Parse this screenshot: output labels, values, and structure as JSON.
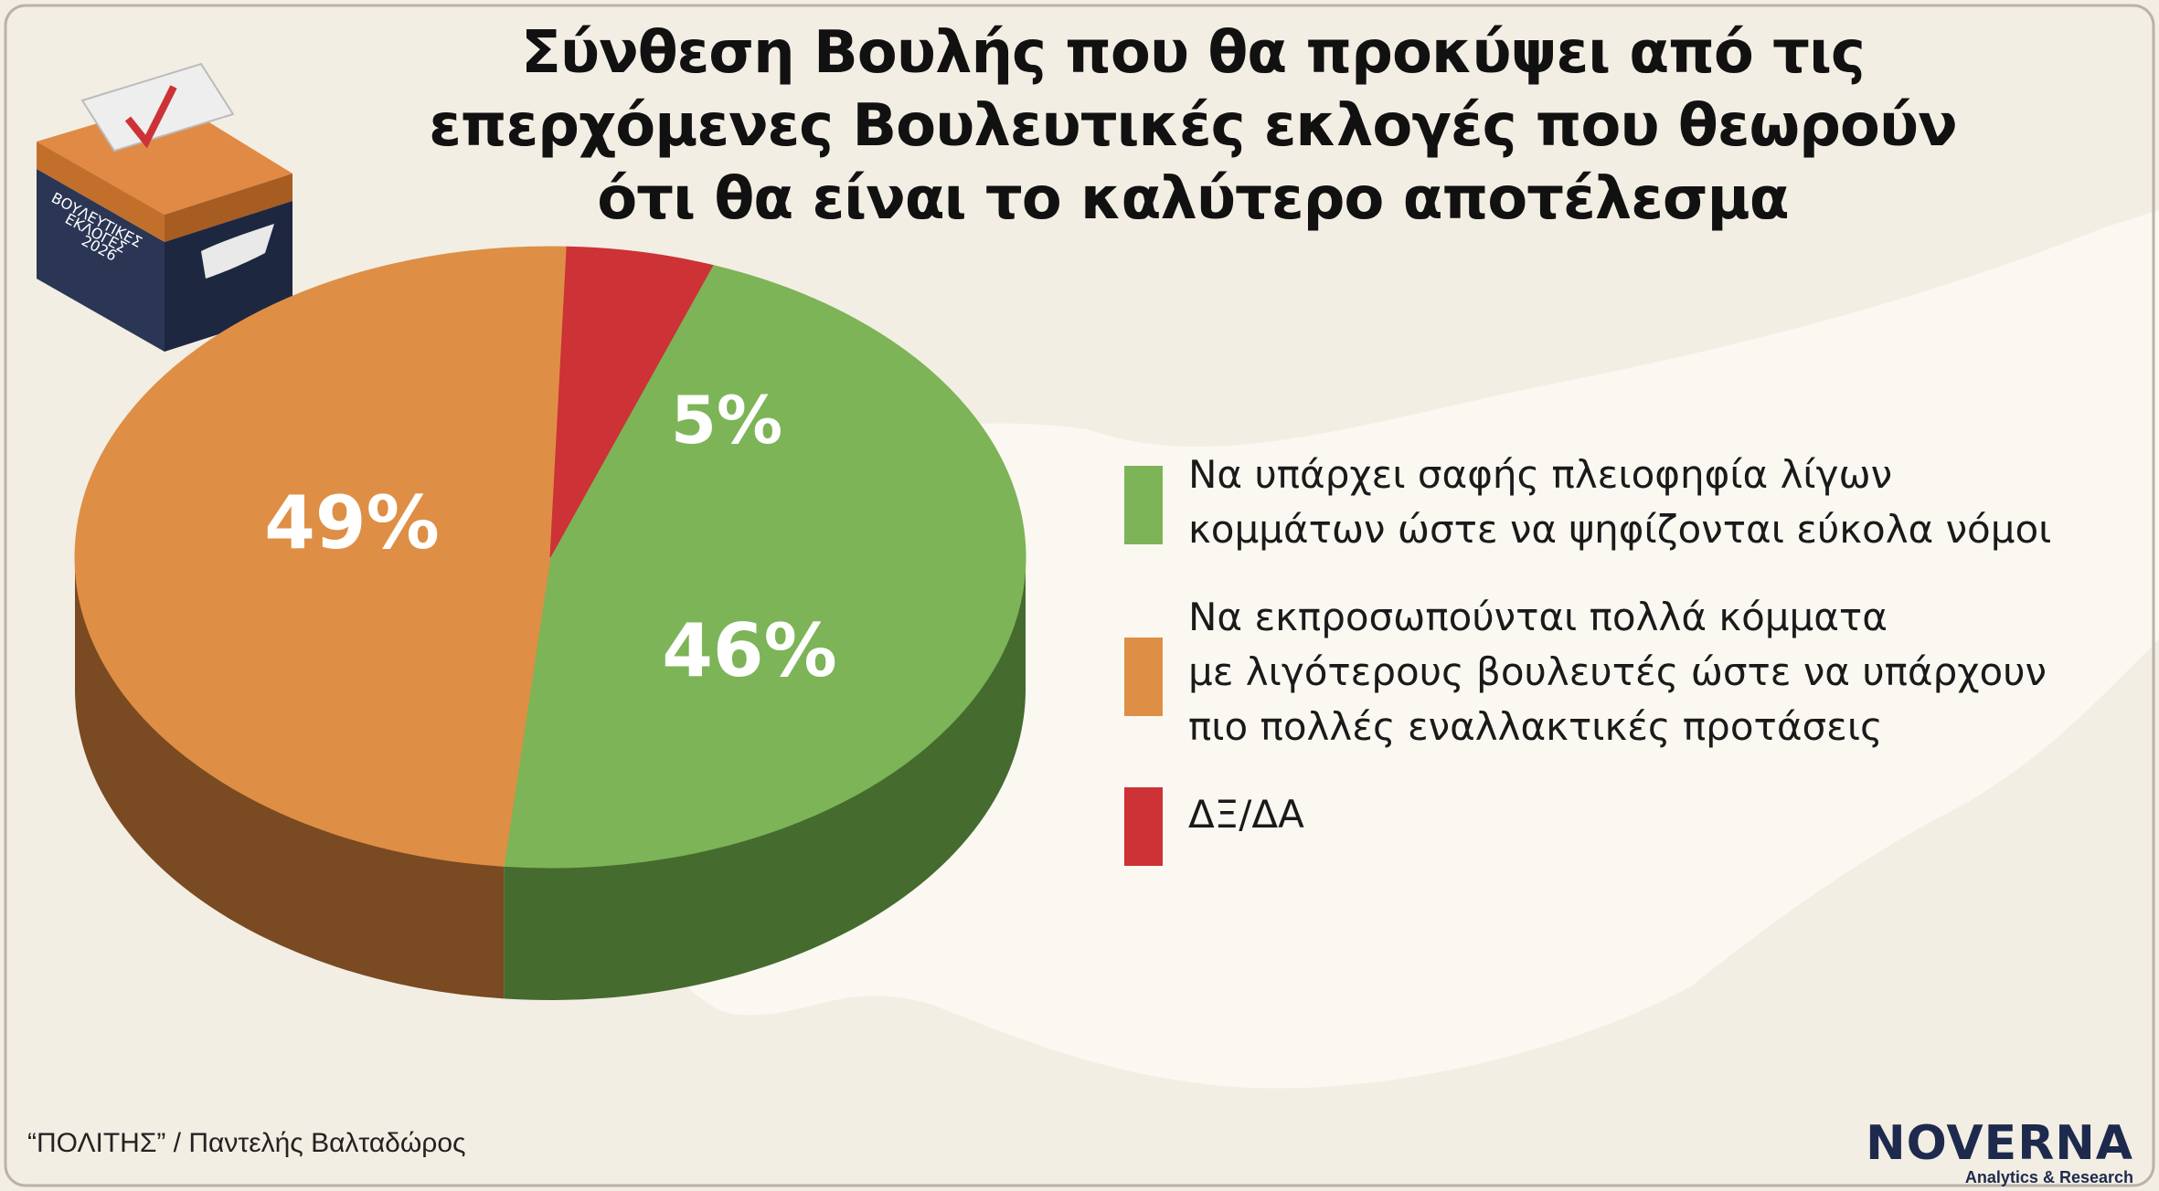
{
  "title_lines": [
    "Σύνθεση Βουλής που θα προκύψει από τις",
    "επερχόμενες Βουλευτικές εκλογές που θεωρούν",
    "ότι θα είναι το καλύτερο αποτέλεσμα"
  ],
  "ballot_box": {
    "lines": [
      "ΒΟΥΛΕΥΤΙΚΕΣ",
      "ΕΚΛΟΓΕΣ",
      "2026"
    ]
  },
  "chart_data": {
    "type": "pie",
    "title": "Σύνθεση Βουλής που θα προκύψει από τις επερχόμενες Βουλευτικές εκλογές που θεωρούν ότι θα είναι το καλύτερο αποτέλεσμα",
    "slices": [
      {
        "label": "Να υπάρχει σαφής πλειοψηφία λίγων κομμάτων ώστε να ψηφίζονται εύκολα νόμοι",
        "value": 46,
        "value_label": "46%",
        "color": "#7cb457",
        "side_color": "#456b2f"
      },
      {
        "label": "Να εκπροσωπούνται πολλά κόμματα με λιγότερους βουλευτές ώστε να υπάρχουν πιο πολλές εναλλακτικές προτάσεις",
        "value": 49,
        "value_label": "49%",
        "color": "#de8f45",
        "side_color": "#7a4a22"
      },
      {
        "label": "ΔΞ/ΔΑ",
        "value": 5,
        "value_label": "5%",
        "color": "#cc3236",
        "side_color": "#7a1c1f"
      }
    ],
    "legend_position": "right",
    "style": "3d"
  },
  "legend": [
    {
      "lines": [
        "Να υπάρχει σαφής πλειοφηφία λίγων",
        "κομμάτων ώστε να ψηφίζονται εύκολα νόμοι"
      ],
      "color": "#7cb457"
    },
    {
      "lines": [
        "Να εκπροσωπούνται πολλά κόμματα",
        "με λιγότερους βουλευτές ώστε να υπάρχουν",
        "πιο πολλές εναλλακτικές προτάσεις"
      ],
      "color": "#de8f45"
    },
    {
      "lines": [
        "ΔΞ/ΔΑ"
      ],
      "color": "#cc3236"
    }
  ],
  "source": "“ΠΟΛΙΤΗΣ” / Παντελής Βαλταδώρος",
  "brand": {
    "name": "NOVERNA",
    "tagline": "Analytics & Research"
  },
  "colors": {
    "background": "#f3eee3",
    "map": "#fbf8f2",
    "box_top": "#d77f3a",
    "box_body": "#233049"
  }
}
